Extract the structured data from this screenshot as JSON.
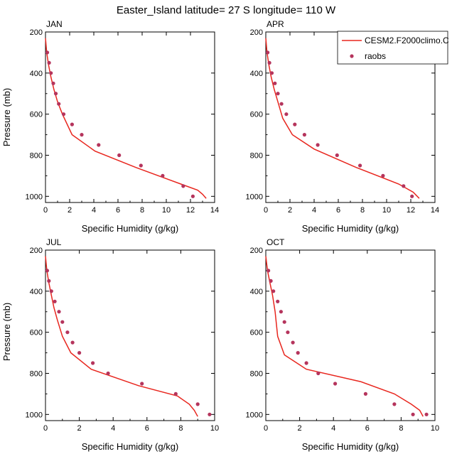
{
  "title": "Easter_Island  latitude= 27 S longitude= 110 W",
  "legend": {
    "model_label": "CESM2.F2000climo.C",
    "obs_label": "raobs",
    "model_color": "#e8261e",
    "obs_color": "#b5345c"
  },
  "chart_data": [
    {
      "type": "line",
      "panel": "JAN",
      "xlabel": "Specific Humidity (g/kg)",
      "ylabel": "Pressure (mb)",
      "xlim": [
        0,
        14
      ],
      "ylim": [
        200,
        1030
      ],
      "y_reversed": true,
      "xticks": [
        0,
        2,
        4,
        6,
        8,
        10,
        12,
        14
      ],
      "yticks": [
        200,
        400,
        600,
        800,
        1000
      ],
      "series": [
        {
          "name": "CESM2.F2000climo.C",
          "kind": "line",
          "x": [
            0.0,
            0.1,
            0.25,
            0.45,
            0.7,
            1.0,
            1.4,
            2.2,
            4.1,
            7.5,
            11.2,
            12.6,
            13.0,
            13.3
          ],
          "y": [
            230,
            300,
            360,
            420,
            480,
            540,
            600,
            700,
            780,
            860,
            940,
            970,
            990,
            1010
          ]
        },
        {
          "name": "raobs",
          "kind": "scatter",
          "x": [
            0.15,
            0.3,
            0.45,
            0.65,
            0.85,
            1.1,
            1.5,
            2.2,
            3.0,
            4.4,
            6.1,
            7.9,
            9.7,
            11.4,
            12.2
          ],
          "y": [
            300,
            350,
            400,
            450,
            500,
            550,
            600,
            650,
            700,
            750,
            800,
            850,
            900,
            950,
            1000
          ]
        }
      ]
    },
    {
      "type": "line",
      "panel": "APR",
      "xlabel": "Specific Humidity (g/kg)",
      "ylabel": "",
      "xlim": [
        0,
        14
      ],
      "ylim": [
        200,
        1030
      ],
      "y_reversed": true,
      "xticks": [
        0,
        2,
        4,
        6,
        8,
        10,
        12,
        14
      ],
      "yticks": [
        200,
        400,
        600,
        800,
        1000
      ],
      "series": [
        {
          "name": "CESM2.F2000climo.C",
          "kind": "line",
          "x": [
            0.0,
            0.1,
            0.25,
            0.45,
            0.7,
            1.0,
            1.4,
            2.2,
            4.0,
            7.5,
            11.0,
            12.2,
            12.7
          ],
          "y": [
            230,
            300,
            360,
            420,
            480,
            540,
            620,
            700,
            770,
            860,
            940,
            980,
            1010
          ]
        },
        {
          "name": "raobs",
          "kind": "scatter",
          "x": [
            0.15,
            0.3,
            0.5,
            0.75,
            1.0,
            1.3,
            1.7,
            2.4,
            3.2,
            4.3,
            5.9,
            7.8,
            9.7,
            11.4,
            12.1
          ],
          "y": [
            300,
            350,
            400,
            450,
            500,
            550,
            600,
            650,
            700,
            750,
            800,
            850,
            900,
            950,
            1000
          ]
        }
      ]
    },
    {
      "type": "line",
      "panel": "JUL",
      "xlabel": "Specific Humidity (g/kg)",
      "ylabel": "Pressure (mb)",
      "xlim": [
        0,
        10
      ],
      "ylim": [
        200,
        1030
      ],
      "y_reversed": true,
      "xticks": [
        0,
        2,
        4,
        6,
        8,
        10
      ],
      "yticks": [
        200,
        400,
        600,
        800,
        1000
      ],
      "series": [
        {
          "name": "CESM2.F2000climo.C",
          "kind": "line",
          "x": [
            0.0,
            0.08,
            0.2,
            0.35,
            0.5,
            0.7,
            1.0,
            1.5,
            2.7,
            5.5,
            7.8,
            8.5,
            8.8,
            9.0
          ],
          "y": [
            230,
            300,
            360,
            420,
            480,
            540,
            620,
            700,
            780,
            860,
            910,
            950,
            980,
            1010
          ]
        },
        {
          "name": "raobs",
          "kind": "scatter",
          "x": [
            0.1,
            0.2,
            0.35,
            0.55,
            0.8,
            1.0,
            1.3,
            1.6,
            2.0,
            2.8,
            3.7,
            5.7,
            7.7,
            9.0,
            9.7
          ],
          "y": [
            300,
            350,
            400,
            450,
            500,
            550,
            600,
            650,
            700,
            750,
            800,
            850,
            900,
            950,
            1000
          ]
        }
      ]
    },
    {
      "type": "line",
      "panel": "OCT",
      "xlabel": "Specific Humidity (g/kg)",
      "ylabel": "",
      "xlim": [
        0,
        10
      ],
      "ylim": [
        200,
        1030
      ],
      "y_reversed": true,
      "xticks": [
        0,
        2,
        4,
        6,
        8,
        10
      ],
      "yticks": [
        200,
        400,
        600,
        800,
        1000
      ],
      "series": [
        {
          "name": "CESM2.F2000climo.C",
          "kind": "line",
          "x": [
            0.0,
            0.1,
            0.25,
            0.4,
            0.55,
            0.7,
            1.1,
            2.4,
            5.6,
            7.6,
            8.6,
            9.1,
            9.3
          ],
          "y": [
            230,
            300,
            360,
            420,
            500,
            620,
            710,
            780,
            840,
            900,
            950,
            980,
            1010
          ]
        },
        {
          "name": "raobs",
          "kind": "scatter",
          "x": [
            0.15,
            0.3,
            0.45,
            0.7,
            0.9,
            1.1,
            1.3,
            1.6,
            1.9,
            2.4,
            3.1,
            4.1,
            5.9,
            7.6,
            8.7,
            9.5
          ],
          "y": [
            300,
            350,
            400,
            450,
            500,
            550,
            600,
            650,
            700,
            750,
            800,
            850,
            900,
            950,
            1000,
            1000
          ]
        }
      ]
    }
  ]
}
